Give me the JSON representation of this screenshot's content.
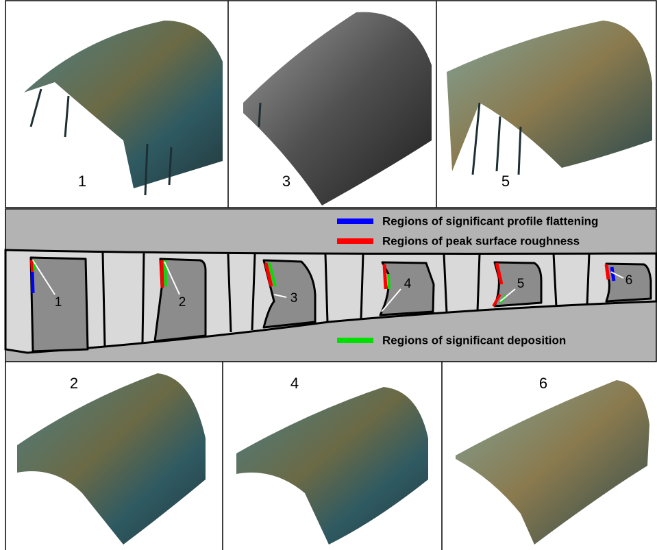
{
  "panels_top": [
    {
      "label": "1"
    },
    {
      "label": "3"
    },
    {
      "label": "5"
    }
  ],
  "panels_bottom": [
    {
      "label": "2"
    },
    {
      "label": "4"
    },
    {
      "label": "6"
    }
  ],
  "legend": [
    {
      "text": "Regions of significant profile flattening",
      "color": "#0000ff"
    },
    {
      "text": "Regions of peak surface roughness",
      "color": "#ff0000"
    },
    {
      "text": "Regions of significant deposition",
      "color": "#00e000"
    }
  ],
  "callouts": [
    "1",
    "2",
    "3",
    "4",
    "5",
    "6"
  ]
}
